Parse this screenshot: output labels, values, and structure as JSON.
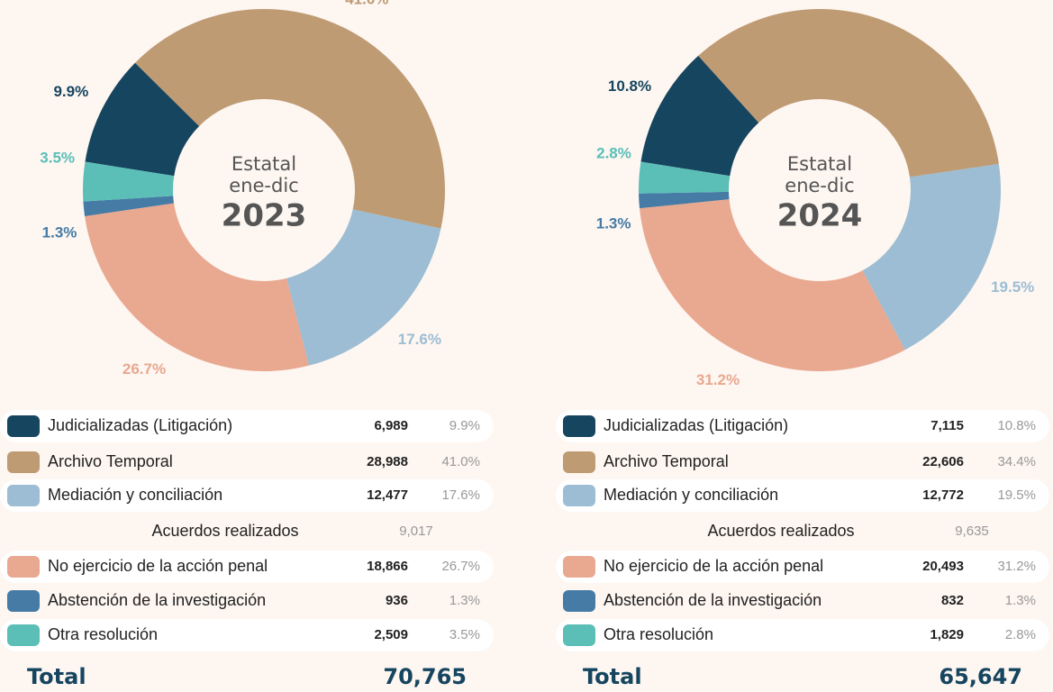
{
  "chart_data": [
    {
      "type": "donut",
      "center": [
        "Estatal",
        "ene-dic"
      ],
      "year": "2023",
      "categories": [
        "Judicializadas (Litigación)",
        "Archivo Temporal",
        "Mediación y conciliación",
        "No ejercicio de la acción penal",
        "Abstención de la investigación",
        "Otra resolución"
      ],
      "colors": [
        "#16455f",
        "#bf9b74",
        "#9cbdd3",
        "#e9a890",
        "#457ba5",
        "#5bbfb8"
      ],
      "values": [
        9.9,
        41.0,
        17.6,
        26.7,
        1.3,
        3.5
      ],
      "value_labels": [
        "9.9%",
        "41.0%",
        "17.6%",
        "26.7%",
        "1.3%",
        "3.5%"
      ],
      "counts": [
        6989,
        28988,
        12477,
        18866,
        936,
        2509
      ],
      "count_labels": [
        "6,989",
        "28,988",
        "12,477",
        "18,866",
        "936",
        "2,509"
      ],
      "acuerdos": {
        "label": "Acuerdos realizados",
        "value": 9017,
        "value_label": "9,017"
      },
      "total": {
        "label": "Total",
        "value": 70765,
        "value_label": "70,765"
      }
    },
    {
      "type": "donut",
      "center": [
        "Estatal",
        "ene-dic"
      ],
      "year": "2024",
      "categories": [
        "Judicializadas (Litigación)",
        "Archivo Temporal",
        "Mediación y conciliación",
        "No ejercicio de la acción penal",
        "Abstención de la investigación",
        "Otra resolución"
      ],
      "colors": [
        "#16455f",
        "#bf9b74",
        "#9cbdd3",
        "#e9a890",
        "#457ba5",
        "#5bbfb8"
      ],
      "values": [
        10.8,
        34.4,
        19.5,
        31.2,
        1.3,
        2.8
      ],
      "value_labels": [
        "10.8%",
        "34.4%",
        "19.5%",
        "31.2%",
        "1.3%",
        "2.8%"
      ],
      "counts": [
        7115,
        22606,
        12772,
        20493,
        832,
        1829
      ],
      "count_labels": [
        "7,115",
        "22,606",
        "12,772",
        "20,493",
        "832",
        "1,829"
      ],
      "acuerdos": {
        "label": "Acuerdos realizados",
        "value": 9635,
        "value_label": "9,635"
      },
      "total": {
        "label": "Total",
        "value": 65647,
        "value_label": "65,647"
      }
    }
  ]
}
